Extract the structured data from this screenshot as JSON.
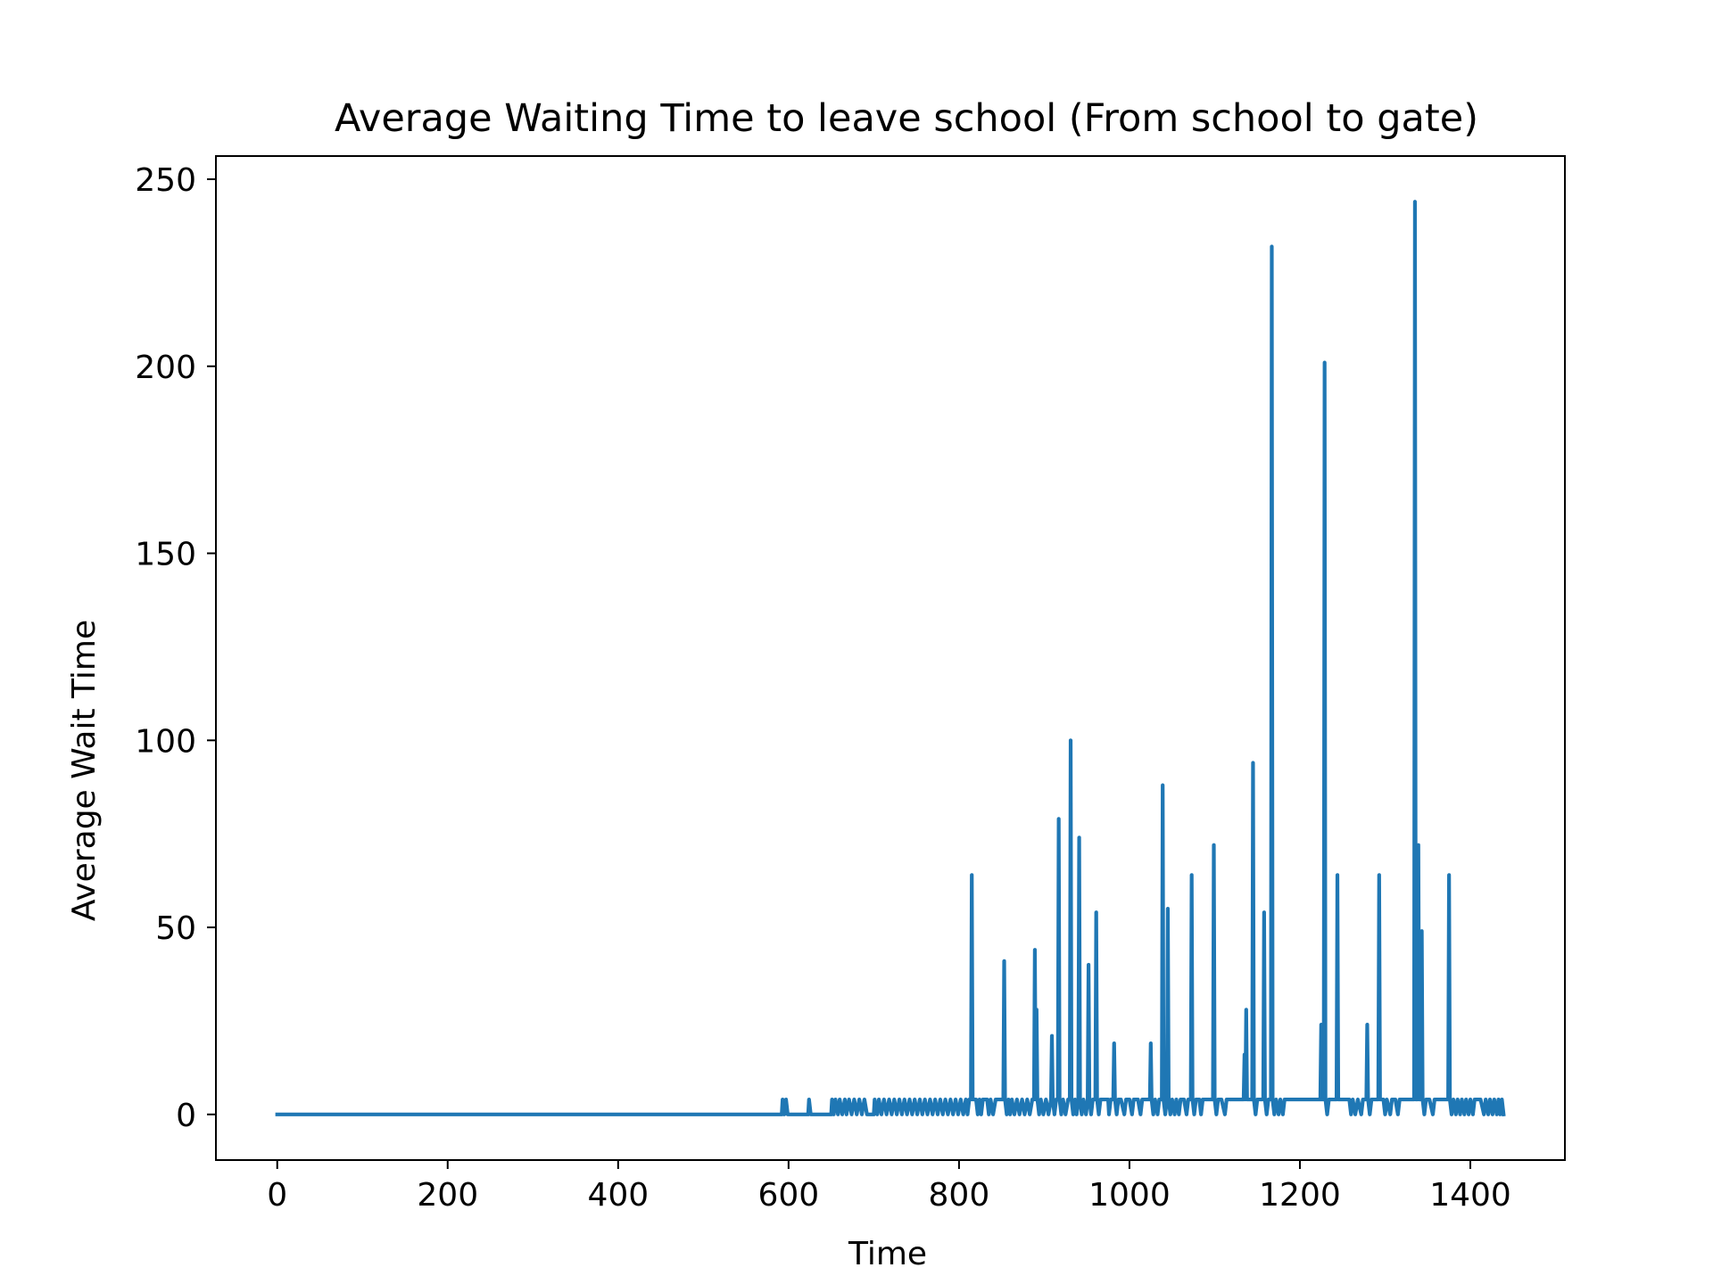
{
  "chart_data": {
    "type": "line",
    "title": "Average Waiting Time to leave school (From school to gate)",
    "xlabel": "Time",
    "ylabel": "Average Wait Time",
    "xlim": [
      -71.95,
      1510.95
    ],
    "ylim": [
      -12.2,
      256.2
    ],
    "xticks": [
      0,
      200,
      400,
      600,
      800,
      1000,
      1200,
      1400
    ],
    "yticks": [
      0,
      50,
      100,
      150,
      200,
      250
    ],
    "grid": false,
    "legend": "none",
    "colors": {
      "line": "#1f77b4",
      "axes": "#000000",
      "background": "#ffffff"
    },
    "series": [
      {
        "points": [
          [
            0,
            0
          ],
          [
            592,
            0
          ],
          [
            593,
            4
          ],
          [
            595,
            0
          ],
          [
            597,
            4
          ],
          [
            599,
            0
          ],
          [
            623,
            0
          ],
          [
            624,
            4
          ],
          [
            626,
            0
          ],
          [
            650,
            0
          ],
          [
            651,
            4
          ],
          [
            653,
            0
          ],
          [
            655,
            4
          ],
          [
            658,
            0
          ],
          [
            660,
            4
          ],
          [
            663,
            0
          ],
          [
            666,
            4
          ],
          [
            668,
            0
          ],
          [
            671,
            4
          ],
          [
            674,
            0
          ],
          [
            677,
            4
          ],
          [
            680,
            0
          ],
          [
            683,
            4
          ],
          [
            686,
            0
          ],
          [
            689,
            4
          ],
          [
            692,
            0
          ],
          [
            700,
            0
          ],
          [
            701,
            4
          ],
          [
            704,
            0
          ],
          [
            706,
            4
          ],
          [
            709,
            0
          ],
          [
            712,
            4
          ],
          [
            715,
            0
          ],
          [
            718,
            4
          ],
          [
            721,
            0
          ],
          [
            724,
            4
          ],
          [
            727,
            0
          ],
          [
            730,
            4
          ],
          [
            733,
            0
          ],
          [
            736,
            4
          ],
          [
            739,
            0
          ],
          [
            742,
            4
          ],
          [
            745,
            0
          ],
          [
            748,
            4
          ],
          [
            751,
            0
          ],
          [
            754,
            4
          ],
          [
            757,
            0
          ],
          [
            760,
            4
          ],
          [
            763,
            0
          ],
          [
            766,
            4
          ],
          [
            769,
            0
          ],
          [
            772,
            4
          ],
          [
            775,
            0
          ],
          [
            778,
            4
          ],
          [
            781,
            0
          ],
          [
            784,
            4
          ],
          [
            787,
            0
          ],
          [
            790,
            4
          ],
          [
            793,
            0
          ],
          [
            796,
            4
          ],
          [
            799,
            0
          ],
          [
            802,
            4
          ],
          [
            805,
            0
          ],
          [
            808,
            4
          ],
          [
            810,
            0
          ],
          [
            812,
            4
          ],
          [
            814,
            4
          ],
          [
            815,
            64
          ],
          [
            816,
            4
          ],
          [
            820,
            4
          ],
          [
            822,
            0
          ],
          [
            824,
            4
          ],
          [
            826,
            0
          ],
          [
            828,
            4
          ],
          [
            833,
            4
          ],
          [
            835,
            0
          ],
          [
            837,
            4
          ],
          [
            840,
            0
          ],
          [
            843,
            4
          ],
          [
            848,
            4
          ],
          [
            852,
            4
          ],
          [
            853,
            41
          ],
          [
            854,
            4
          ],
          [
            856,
            0
          ],
          [
            858,
            4
          ],
          [
            860,
            0
          ],
          [
            862,
            4
          ],
          [
            865,
            0
          ],
          [
            868,
            4
          ],
          [
            871,
            0
          ],
          [
            874,
            4
          ],
          [
            877,
            0
          ],
          [
            880,
            4
          ],
          [
            883,
            0
          ],
          [
            886,
            4
          ],
          [
            888,
            4
          ],
          [
            889,
            44
          ],
          [
            890,
            4
          ],
          [
            891,
            28
          ],
          [
            892,
            4
          ],
          [
            894,
            0
          ],
          [
            896,
            4
          ],
          [
            899,
            0
          ],
          [
            902,
            4
          ],
          [
            905,
            0
          ],
          [
            908,
            4
          ],
          [
            909,
            21
          ],
          [
            910,
            4
          ],
          [
            912,
            0
          ],
          [
            914,
            4
          ],
          [
            916,
            4
          ],
          [
            917,
            79
          ],
          [
            918,
            4
          ],
          [
            920,
            0
          ],
          [
            922,
            4
          ],
          [
            925,
            0
          ],
          [
            928,
            4
          ],
          [
            930,
            4
          ],
          [
            931,
            100
          ],
          [
            932,
            4
          ],
          [
            934,
            0
          ],
          [
            936,
            4
          ],
          [
            938,
            0
          ],
          [
            940,
            4
          ],
          [
            941,
            74
          ],
          [
            942,
            4
          ],
          [
            944,
            0
          ],
          [
            946,
            4
          ],
          [
            949,
            0
          ],
          [
            951,
            4
          ],
          [
            952,
            40
          ],
          [
            953,
            4
          ],
          [
            955,
            0
          ],
          [
            957,
            4
          ],
          [
            960,
            4
          ],
          [
            961,
            54
          ],
          [
            962,
            4
          ],
          [
            964,
            0
          ],
          [
            966,
            4
          ],
          [
            970,
            4
          ],
          [
            975,
            4
          ],
          [
            976,
            0
          ],
          [
            978,
            4
          ],
          [
            981,
            4
          ],
          [
            982,
            19
          ],
          [
            983,
            4
          ],
          [
            985,
            0
          ],
          [
            987,
            4
          ],
          [
            990,
            4
          ],
          [
            994,
            0
          ],
          [
            996,
            4
          ],
          [
            1000,
            4
          ],
          [
            1003,
            0
          ],
          [
            1005,
            4
          ],
          [
            1010,
            4
          ],
          [
            1013,
            0
          ],
          [
            1015,
            4
          ],
          [
            1020,
            4
          ],
          [
            1024,
            4
          ],
          [
            1025,
            19
          ],
          [
            1026,
            4
          ],
          [
            1028,
            0
          ],
          [
            1030,
            4
          ],
          [
            1033,
            0
          ],
          [
            1035,
            4
          ],
          [
            1038,
            4
          ],
          [
            1039,
            88
          ],
          [
            1040,
            4
          ],
          [
            1042,
            0
          ],
          [
            1044,
            4
          ],
          [
            1045,
            55
          ],
          [
            1046,
            4
          ],
          [
            1048,
            0
          ],
          [
            1050,
            4
          ],
          [
            1053,
            0
          ],
          [
            1055,
            4
          ],
          [
            1058,
            0
          ],
          [
            1060,
            4
          ],
          [
            1064,
            4
          ],
          [
            1067,
            0
          ],
          [
            1069,
            4
          ],
          [
            1072,
            4
          ],
          [
            1073,
            64
          ],
          [
            1074,
            4
          ],
          [
            1076,
            0
          ],
          [
            1078,
            4
          ],
          [
            1082,
            4
          ],
          [
            1084,
            0
          ],
          [
            1086,
            4
          ],
          [
            1090,
            4
          ],
          [
            1095,
            4
          ],
          [
            1098,
            4
          ],
          [
            1099,
            72
          ],
          [
            1100,
            4
          ],
          [
            1102,
            0
          ],
          [
            1104,
            4
          ],
          [
            1108,
            4
          ],
          [
            1112,
            0
          ],
          [
            1114,
            4
          ],
          [
            1120,
            4
          ],
          [
            1125,
            4
          ],
          [
            1130,
            4
          ],
          [
            1134,
            4
          ],
          [
            1135,
            16
          ],
          [
            1136,
            4
          ],
          [
            1137,
            28
          ],
          [
            1138,
            4
          ],
          [
            1141,
            4
          ],
          [
            1144,
            4
          ],
          [
            1145,
            94
          ],
          [
            1146,
            4
          ],
          [
            1148,
            0
          ],
          [
            1150,
            4
          ],
          [
            1155,
            4
          ],
          [
            1157,
            4
          ],
          [
            1158,
            54
          ],
          [
            1159,
            4
          ],
          [
            1161,
            0
          ],
          [
            1163,
            4
          ],
          [
            1166,
            4
          ],
          [
            1167,
            232
          ],
          [
            1168,
            4
          ],
          [
            1170,
            0
          ],
          [
            1172,
            4
          ],
          [
            1175,
            0
          ],
          [
            1177,
            4
          ],
          [
            1180,
            0
          ],
          [
            1182,
            4
          ],
          [
            1185,
            4
          ],
          [
            1190,
            4
          ],
          [
            1200,
            4
          ],
          [
            1210,
            4
          ],
          [
            1220,
            4
          ],
          [
            1224,
            4
          ],
          [
            1225,
            24
          ],
          [
            1226,
            4
          ],
          [
            1228,
            4
          ],
          [
            1229,
            201
          ],
          [
            1230,
            4
          ],
          [
            1232,
            0
          ],
          [
            1234,
            4
          ],
          [
            1240,
            4
          ],
          [
            1243,
            4
          ],
          [
            1244,
            64
          ],
          [
            1245,
            4
          ],
          [
            1250,
            4
          ],
          [
            1258,
            4
          ],
          [
            1260,
            0
          ],
          [
            1262,
            4
          ],
          [
            1265,
            0
          ],
          [
            1268,
            4
          ],
          [
            1272,
            0
          ],
          [
            1274,
            4
          ],
          [
            1278,
            4
          ],
          [
            1279,
            24
          ],
          [
            1280,
            4
          ],
          [
            1282,
            0
          ],
          [
            1284,
            4
          ],
          [
            1290,
            4
          ],
          [
            1292,
            4
          ],
          [
            1293,
            64
          ],
          [
            1294,
            4
          ],
          [
            1298,
            4
          ],
          [
            1300,
            0
          ],
          [
            1302,
            4
          ],
          [
            1306,
            0
          ],
          [
            1308,
            4
          ],
          [
            1312,
            4
          ],
          [
            1315,
            0
          ],
          [
            1317,
            4
          ],
          [
            1320,
            4
          ],
          [
            1325,
            4
          ],
          [
            1330,
            4
          ],
          [
            1334,
            4
          ],
          [
            1335,
            244
          ],
          [
            1336,
            4
          ],
          [
            1338,
            4
          ],
          [
            1339,
            72
          ],
          [
            1340,
            4
          ],
          [
            1342,
            4
          ],
          [
            1343,
            49
          ],
          [
            1344,
            4
          ],
          [
            1346,
            0
          ],
          [
            1348,
            4
          ],
          [
            1352,
            4
          ],
          [
            1356,
            0
          ],
          [
            1358,
            4
          ],
          [
            1365,
            4
          ],
          [
            1372,
            4
          ],
          [
            1374,
            4
          ],
          [
            1375,
            64
          ],
          [
            1376,
            4
          ],
          [
            1378,
            0
          ],
          [
            1380,
            4
          ],
          [
            1383,
            0
          ],
          [
            1385,
            4
          ],
          [
            1388,
            0
          ],
          [
            1390,
            4
          ],
          [
            1393,
            0
          ],
          [
            1395,
            4
          ],
          [
            1398,
            0
          ],
          [
            1400,
            4
          ],
          [
            1403,
            0
          ],
          [
            1405,
            4
          ],
          [
            1408,
            4
          ],
          [
            1412,
            4
          ],
          [
            1416,
            0
          ],
          [
            1418,
            4
          ],
          [
            1421,
            0
          ],
          [
            1423,
            4
          ],
          [
            1426,
            0
          ],
          [
            1428,
            4
          ],
          [
            1431,
            0
          ],
          [
            1433,
            4
          ],
          [
            1435,
            0
          ],
          [
            1437,
            4
          ],
          [
            1439,
            0
          ]
        ]
      }
    ]
  }
}
